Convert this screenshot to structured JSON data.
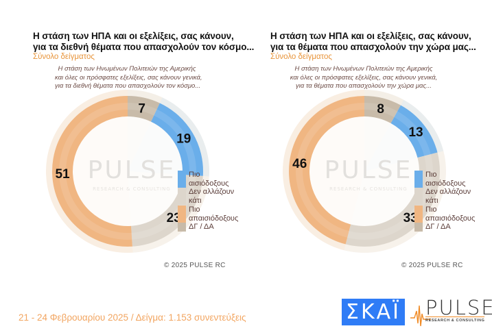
{
  "colors": {
    "optimistic": "#6aaeea",
    "no_change": "#ddd6cc",
    "pessimistic": "#f0b682",
    "dk_na": "#c8bba9",
    "accent_orange": "#e8943a",
    "footer_orange": "#f2a560",
    "skai_blue": "#2f7cf6"
  },
  "panels": [
    {
      "title_line1": "Η στάση των ΗΠΑ και οι εξελίξεις, σας κάνουν,",
      "title_line2": "για τα διεθνή θέματα που απασχολούν τον κόσμο...",
      "subtitle": "Σύνολο δείγματος",
      "question_line1": "Η στάση των Ηνωμένων Πολιτειών της Αμερικής",
      "question_line2": "και όλες οι πρόσφατες εξελίξεις, σας κάνουν γενικά,",
      "question_line3": "για τα διεθνή θέματα που απασχολούν τον κόσμο...",
      "copyright": "©  2025  PULSE RC"
    },
    {
      "title_line1": "Η στάση των ΗΠΑ και οι εξελίξεις, σας κάνουν,",
      "title_line2": "για τα θέματα που απασχολούν την χώρα μας...",
      "subtitle": "Σύνολο δείγματος",
      "question_line1": "Η στάση των Ηνωμένων Πολιτειών της Αμερικής",
      "question_line2": "και όλες οι πρόσφατες εξελίξεις, σας κάνουν γενικά,",
      "question_line3": "για τα θέματα που απασχολούν την χώρα μας...",
      "copyright": "©  2025  PULSE RC"
    }
  ],
  "legend": {
    "items": [
      {
        "line1": "Πιο",
        "line2": "αισιόδοξους",
        "color": "#6aaeea"
      },
      {
        "line1": "Δεν αλλάζουν",
        "line2": "κάτι",
        "color": "#ddd6cc"
      },
      {
        "line1": "Πιο",
        "line2": "απαισιόδοξους",
        "color": "#f0b682"
      },
      {
        "line1": "ΔΓ / ΔΑ",
        "line2": "",
        "color": "#c8bba9"
      }
    ]
  },
  "watermark": {
    "word": "PULSE",
    "sub": "RESEARCH & CONSULTING"
  },
  "footer": {
    "text": "21 - 24 Φεβρουαρίου 2025  /  Δείγμα:  1.153 συνεντεύξεις",
    "skai_logo": "ΣΚΑΪ",
    "pulse_logo_word": "PULSE",
    "pulse_logo_sub": "RESEARCH & CONSULTING"
  },
  "chart_data": [
    {
      "type": "pie",
      "subtype": "donut",
      "title": "Η στάση των ΗΠΑ και οι εξελίξεις, σας κάνουν, για τα διεθνή θέματα που απασχολούν τον κόσμο...",
      "subtitle": "Σύνολο δείγματος",
      "categories": [
        "ΔΓ / ΔΑ",
        "Πιο αισιόδοξους",
        "Δεν αλλάζουν κάτι",
        "Πιο απαισιόδοξους"
      ],
      "values": [
        7,
        19,
        23,
        51
      ],
      "unit": "%",
      "start_angle": "12 o'clock, clockwise",
      "legend_position": "right-bottom"
    },
    {
      "type": "pie",
      "subtype": "donut",
      "title": "Η στάση των ΗΠΑ και οι εξελίξεις, σας κάνουν, για τα θέματα που απασχολούν την χώρα μας...",
      "subtitle": "Σύνολο δείγματος",
      "categories": [
        "ΔΓ / ΔΑ",
        "Πιο αισιόδοξους",
        "Δεν αλλάζουν κάτι",
        "Πιο απαισιόδοξους"
      ],
      "values": [
        8,
        13,
        33,
        46
      ],
      "unit": "%",
      "start_angle": "12 o'clock, clockwise",
      "legend_position": "right-bottom"
    }
  ]
}
